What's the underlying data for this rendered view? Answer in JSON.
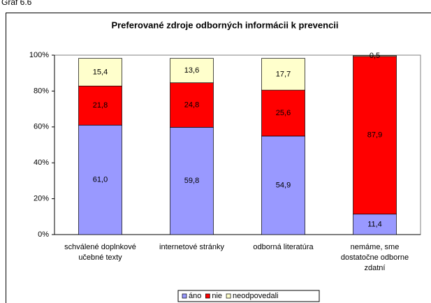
{
  "caption": "Graf 6.6",
  "chart_data": {
    "type": "stacked_bar",
    "title": "Preferované zdroje odborných informácii k prevencii",
    "categories": [
      [
        "schválené doplnkové",
        "učebné texty"
      ],
      [
        "internetové stránky"
      ],
      [
        "odborná literatúra"
      ],
      [
        "nemáme, sme",
        "dostatočne odborne",
        "zdatní"
      ]
    ],
    "series": [
      {
        "name": "áno",
        "color": "#9999ff",
        "values": [
          61.0,
          59.8,
          54.9,
          11.4
        ],
        "value_labels": [
          "61,0",
          "59,8",
          "54,9",
          "11,4"
        ]
      },
      {
        "name": "nie",
        "color": "#ff0000",
        "values": [
          21.8,
          24.8,
          25.6,
          87.9
        ],
        "value_labels": [
          "21,8",
          "24,8",
          "25,6",
          "87,9"
        ]
      },
      {
        "name": "neodpovedali",
        "color": "#ffffcc",
        "values": [
          15.4,
          13.6,
          17.7,
          0.5
        ],
        "value_labels": [
          "15,4",
          "13,6",
          "17,7",
          "0,5"
        ]
      }
    ],
    "ylim": [
      0,
      100
    ],
    "yticks": [
      {
        "value": 0,
        "label": "0%"
      },
      {
        "value": 20,
        "label": "20%"
      },
      {
        "value": 40,
        "label": "40%"
      },
      {
        "value": 60,
        "label": "60%"
      },
      {
        "value": 80,
        "label": "80%"
      },
      {
        "value": 100,
        "label": "100%"
      }
    ],
    "legend": "bottom"
  }
}
